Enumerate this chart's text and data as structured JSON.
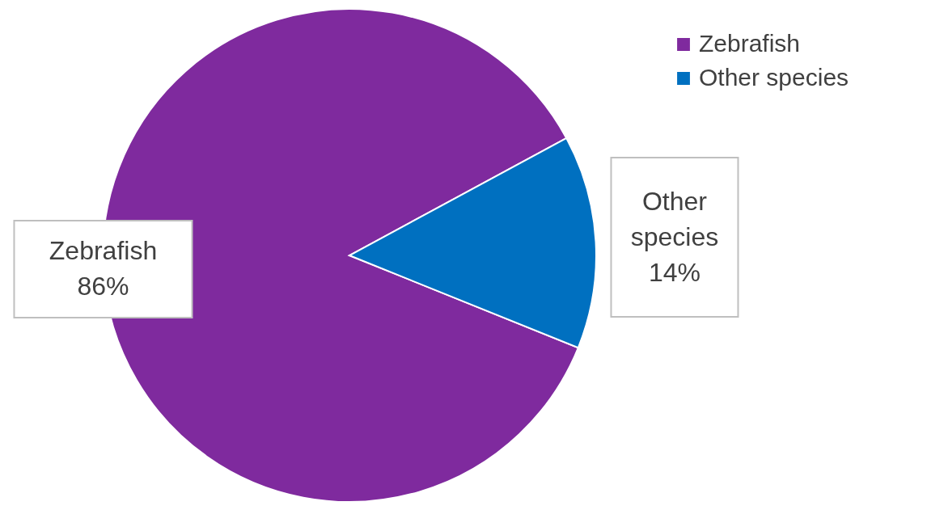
{
  "chart_data": {
    "type": "pie",
    "categories": [
      "Zebrafish",
      "Other species"
    ],
    "values": [
      86,
      14
    ],
    "colors": [
      "#7f2a9e",
      "#0070c0"
    ],
    "value_labels": [
      "86%",
      "14%"
    ],
    "legend": "top right"
  }
}
